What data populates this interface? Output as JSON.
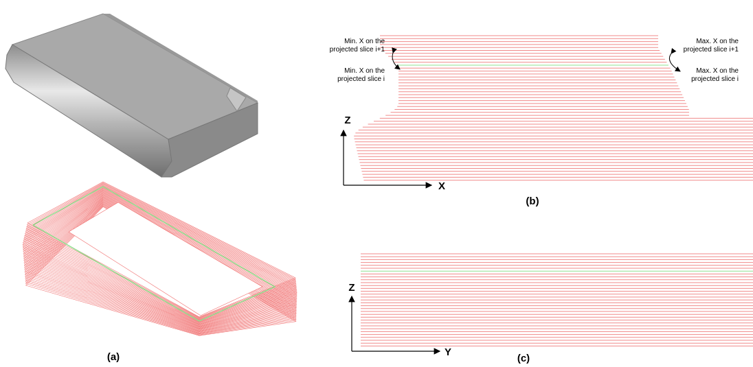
{
  "panels": [
    {
      "caption": "(a)"
    },
    {
      "caption": "(b)",
      "axes": [
        "Z",
        "X"
      ],
      "annotations": [
        {
          "lines": [
            "Min. X on the",
            "projected slice i+1"
          ]
        },
        {
          "lines": [
            "Min. X on the",
            "projected slice i"
          ]
        },
        {
          "lines": [
            "Max. X on the",
            "projected slice i+1"
          ]
        },
        {
          "lines": [
            "Max. X on the",
            "projected slice i"
          ]
        }
      ]
    },
    {
      "caption": "(c)",
      "axes": [
        "Z",
        "Y"
      ]
    }
  ]
}
